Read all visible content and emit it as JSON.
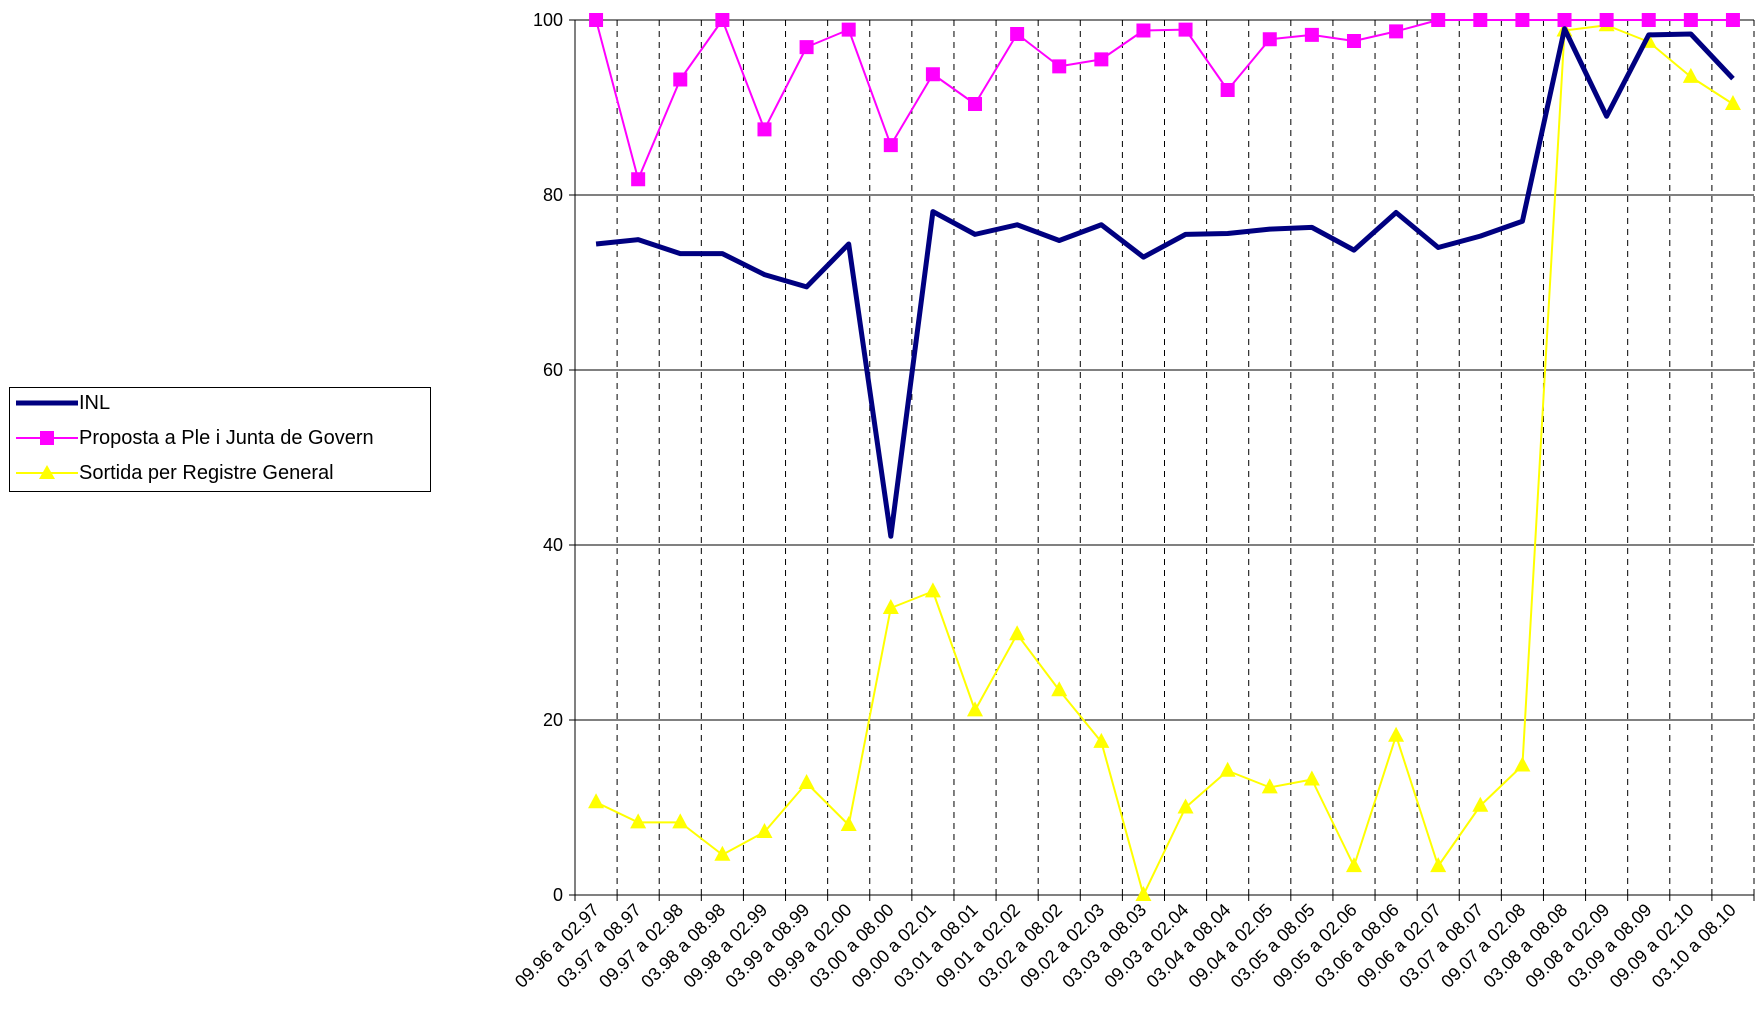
{
  "chart_data": {
    "type": "line",
    "title": "",
    "xlabel": "",
    "ylabel": "",
    "ylim": [
      0,
      100
    ],
    "yticks": [
      0,
      20,
      40,
      60,
      80,
      100
    ],
    "grid": {
      "horizontal": true,
      "vertical": "dashed"
    },
    "legend_position": "left",
    "categories": [
      "09.96 a 02.97",
      "03.97 a 08.97",
      "09.97 a 02.98",
      "03.98 a 08.98",
      "09.98 a 02.99",
      "03.99 a 08.99",
      "09.99 a 02.00",
      "03.00 a 08.00",
      "09.00 a 02.01",
      "03.01 a 08.01",
      "09.01 a 02.02",
      "03.02 a 08.02",
      "09.02 a 02.03",
      "03.03 a 08.03",
      "09.03 a 02.04",
      "03.04 a 08.04",
      "09.04 a 02.05",
      "03.05 a 08.05",
      "09.05 a 02.06",
      "03.06 a 08.06",
      "09.06 a 02.07",
      "03.07 a 08.07",
      "09.07 a 02.08",
      "03.08 a 08.08",
      "09.08 a 02.09",
      "03.09 a 08.09",
      "09.09 a 02.10",
      "03.10 a 08.10"
    ],
    "series": [
      {
        "name": "INL",
        "color": "#000080",
        "marker": "none",
        "values": [
          74.4,
          74.9,
          73.3,
          73.3,
          70.9,
          69.5,
          74.4,
          41.0,
          78.1,
          75.5,
          76.6,
          74.8,
          76.6,
          72.9,
          75.5,
          75.6,
          76.1,
          76.3,
          73.7,
          78.0,
          74.0,
          75.3,
          77.0,
          99.0,
          89.0,
          98.3,
          98.4,
          93.3
        ]
      },
      {
        "name": "Proposta a Ple i Junta de Govern",
        "color": "#FF00FF",
        "marker": "square",
        "values": [
          100,
          81.8,
          93.2,
          100,
          87.5,
          96.9,
          98.9,
          85.7,
          93.8,
          90.4,
          98.4,
          94.7,
          95.5,
          98.8,
          98.9,
          92.0,
          97.8,
          98.3,
          97.6,
          98.7,
          100,
          100,
          100,
          100,
          100,
          100,
          100,
          100
        ]
      },
      {
        "name": "Sortida per Registre General",
        "color": "#FFFF00",
        "marker": "triangle",
        "values": [
          10.6,
          8.3,
          8.3,
          4.6,
          7.2,
          12.8,
          8.0,
          32.8,
          34.7,
          21.1,
          29.8,
          23.4,
          17.5,
          0.0,
          10.0,
          14.2,
          12.3,
          13.2,
          3.3,
          18.2,
          3.3,
          10.2,
          14.8,
          98.8,
          99.4,
          97.5,
          93.5,
          90.4
        ]
      }
    ]
  }
}
